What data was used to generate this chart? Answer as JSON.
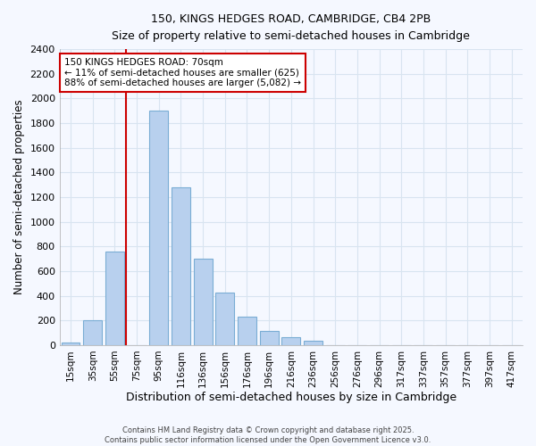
{
  "title1": "150, KINGS HEDGES ROAD, CAMBRIDGE, CB4 2PB",
  "title2": "Size of property relative to semi-detached houses in Cambridge",
  "xlabel": "Distribution of semi-detached houses by size in Cambridge",
  "ylabel": "Number of semi-detached properties",
  "categories": [
    "15sqm",
    "35sqm",
    "55sqm",
    "75sqm",
    "95sqm",
    "116sqm",
    "136sqm",
    "156sqm",
    "176sqm",
    "196sqm",
    "216sqm",
    "236sqm",
    "256sqm",
    "276sqm",
    "296sqm",
    "317sqm",
    "337sqm",
    "357sqm",
    "377sqm",
    "397sqm",
    "417sqm"
  ],
  "values": [
    25,
    200,
    760,
    0,
    1900,
    1280,
    700,
    430,
    230,
    115,
    65,
    35,
    0,
    0,
    0,
    0,
    0,
    0,
    0,
    0,
    0
  ],
  "bar_color": "#b8d0ee",
  "bar_edge_color": "#7aadd4",
  "background_color": "#f5f8ff",
  "grid_color": "#d8e4f0",
  "annotation_box_text": "150 KINGS HEDGES ROAD: 70sqm\n← 11% of semi-detached houses are smaller (625)\n88% of semi-detached houses are larger (5,082) →",
  "red_line_x": 2.5,
  "annotation_box_color": "#ffffff",
  "annotation_box_edge_color": "#cc0000",
  "footer1": "Contains HM Land Registry data © Crown copyright and database right 2025.",
  "footer2": "Contains public sector information licensed under the Open Government Licence v3.0.",
  "ylim": [
    0,
    2400
  ],
  "yticks": [
    0,
    200,
    400,
    600,
    800,
    1000,
    1200,
    1400,
    1600,
    1800,
    2000,
    2200,
    2400
  ]
}
